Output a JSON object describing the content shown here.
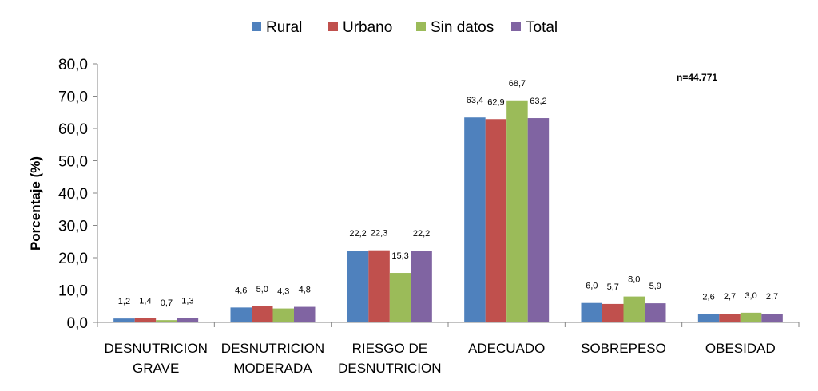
{
  "chart_data": {
    "type": "bar",
    "categories": [
      [
        "DESNUTRICION",
        "GRAVE"
      ],
      [
        "DESNUTRICION",
        "MODERADA"
      ],
      [
        "RIESGO DE",
        "DESNUTRICION"
      ],
      [
        "ADECUADO"
      ],
      [
        "SOBREPESO"
      ],
      [
        "OBESIDAD"
      ]
    ],
    "series": [
      {
        "name": "Rural",
        "color": "#4F81BD",
        "values": [
          1.2,
          4.6,
          22.2,
          63.4,
          6.0,
          2.6
        ],
        "labels": [
          "1,2",
          "4,6",
          "22,2",
          "63,4",
          "6,0",
          "2,6"
        ]
      },
      {
        "name": "Urbano",
        "color": "#C0504D",
        "values": [
          1.4,
          5.0,
          22.3,
          62.9,
          5.7,
          2.7
        ],
        "labels": [
          "1,4",
          "5,0",
          "22,3",
          "62,9",
          "5,7",
          "2,7"
        ]
      },
      {
        "name": "Sin datos",
        "color": "#9BBB59",
        "values": [
          0.7,
          4.3,
          15.3,
          68.7,
          8.0,
          3.0
        ],
        "labels": [
          "0,7",
          "4,3",
          "15,3",
          "68,7",
          "8,0",
          "3,0"
        ]
      },
      {
        "name": "Total",
        "color": "#8064A2",
        "values": [
          1.3,
          4.8,
          22.2,
          63.2,
          5.9,
          2.7
        ],
        "labels": [
          "1,3",
          "4,8",
          "22,2",
          "63,2",
          "5,9",
          "2,7"
        ]
      }
    ],
    "ylabel": "Porcentaje (%)",
    "xlabel": "",
    "ylim": [
      0,
      80
    ],
    "yticks": [
      0,
      10,
      20,
      30,
      40,
      50,
      60,
      70,
      80
    ],
    "ytick_labels": [
      "0,0",
      "10,0",
      "20,0",
      "30,0",
      "40,0",
      "50,0",
      "60,0",
      "70,0",
      "80,0"
    ],
    "legend_position": "top-center",
    "grid": false,
    "annotation": "n=44.771"
  }
}
